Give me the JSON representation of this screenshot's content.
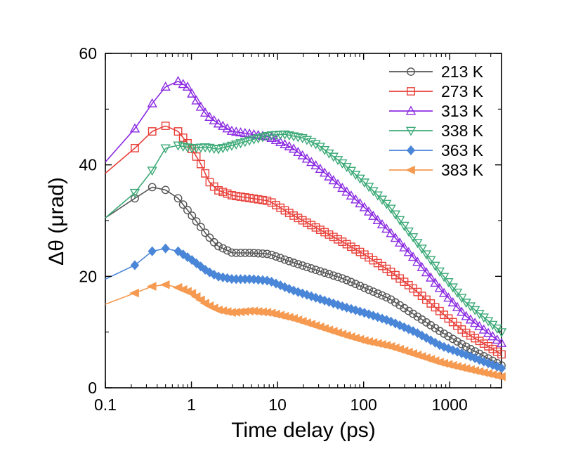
{
  "chart_data": {
    "type": "line",
    "title": "",
    "xlabel": "Time delay (ps)",
    "ylabel": "Δθ (μrad)",
    "xscale": "log",
    "xlim": [
      0.1,
      4000
    ],
    "ylim": [
      0,
      60
    ],
    "xticks": [
      {
        "value": 0.1,
        "label": "0.1"
      },
      {
        "value": 1,
        "label": "1"
      },
      {
        "value": 10,
        "label": "10"
      },
      {
        "value": 100,
        "label": "100"
      },
      {
        "value": 1000,
        "label": "1000"
      }
    ],
    "yticks": [
      {
        "value": 0,
        "label": "0"
      },
      {
        "value": 20,
        "label": "20"
      },
      {
        "value": 40,
        "label": "40"
      },
      {
        "value": 60,
        "label": "60"
      }
    ],
    "grid": false,
    "legend_position": "top-right",
    "series": [
      {
        "name": "213 K",
        "color": "#555555",
        "marker": "circle-open",
        "x": [
          0.1,
          0.22,
          0.35,
          0.5,
          0.7,
          1.0,
          1.5,
          2.0,
          3.0,
          5.0,
          8.0,
          15,
          30,
          60,
          100,
          200,
          400,
          800,
          1500,
          4000
        ],
        "y": [
          30.5,
          34,
          36,
          35.5,
          34,
          31,
          27.5,
          25.5,
          24.2,
          24.2,
          24,
          22.5,
          21,
          19.5,
          18,
          16,
          13,
          10,
          7.5,
          4
        ]
      },
      {
        "name": "273 K",
        "color": "#e8403a",
        "marker": "square-open",
        "x": [
          0.1,
          0.22,
          0.35,
          0.5,
          0.7,
          1.0,
          1.3,
          1.6,
          2.0,
          3.0,
          5.0,
          8.0,
          15,
          30,
          60,
          100,
          200,
          400,
          800,
          1500,
          4000
        ],
        "y": [
          38.5,
          43,
          46,
          47,
          46,
          43,
          40,
          37,
          35.5,
          34.5,
          34,
          33.5,
          31,
          28.5,
          26,
          24,
          21,
          17.5,
          13.5,
          10,
          6
        ]
      },
      {
        "name": "313 K",
        "color": "#8b2be2",
        "marker": "triangle-up-open",
        "x": [
          0.1,
          0.22,
          0.35,
          0.5,
          0.7,
          0.9,
          1.2,
          1.5,
          2.0,
          3.0,
          5.0,
          8.0,
          15,
          30,
          60,
          100,
          200,
          400,
          800,
          1500,
          4000
        ],
        "y": [
          40.5,
          46.5,
          51,
          54,
          55,
          54,
          51,
          49,
          47.5,
          46,
          45.5,
          45,
          43,
          39.5,
          35.5,
          32.5,
          28,
          23,
          17.5,
          13,
          8
        ]
      },
      {
        "name": "338 K",
        "color": "#3daa78",
        "marker": "triangle-down-open",
        "x": [
          0.1,
          0.22,
          0.35,
          0.5,
          0.7,
          1.0,
          1.5,
          2.0,
          3.0,
          5.0,
          8.0,
          12,
          20,
          30,
          60,
          100,
          200,
          400,
          800,
          1500,
          4000
        ],
        "y": [
          30.5,
          35,
          39,
          43,
          43.5,
          43,
          43.2,
          42.8,
          43.5,
          44.5,
          45.3,
          45.5,
          44.8,
          43.5,
          40,
          37,
          32.5,
          26.5,
          20.5,
          15.5,
          10
        ]
      },
      {
        "name": "363 K",
        "color": "#4a86d8",
        "marker": "diamond-filled",
        "x": [
          0.1,
          0.22,
          0.35,
          0.5,
          0.7,
          1.0,
          1.5,
          2.0,
          3.0,
          5.0,
          8.0,
          15,
          30,
          60,
          100,
          200,
          400,
          800,
          1500,
          4000
        ],
        "y": [
          19.5,
          22,
          24.5,
          25,
          24.5,
          23,
          21,
          20,
          19.5,
          19.5,
          19.2,
          17.5,
          16,
          14.5,
          13.5,
          12,
          10,
          7.5,
          6,
          3.5
        ]
      },
      {
        "name": "383 K",
        "color": "#f59a50",
        "marker": "triangle-left-filled",
        "x": [
          0.1,
          0.22,
          0.35,
          0.5,
          0.7,
          1.0,
          1.5,
          2.0,
          3.0,
          5.0,
          8.0,
          15,
          30,
          60,
          100,
          200,
          400,
          800,
          1500,
          4000
        ],
        "y": [
          15,
          17,
          18.2,
          18.5,
          18,
          17,
          15,
          14,
          13.5,
          13.8,
          13.5,
          12.5,
          11,
          9.5,
          8.5,
          7.5,
          6,
          4.5,
          3.5,
          2
        ]
      }
    ]
  }
}
